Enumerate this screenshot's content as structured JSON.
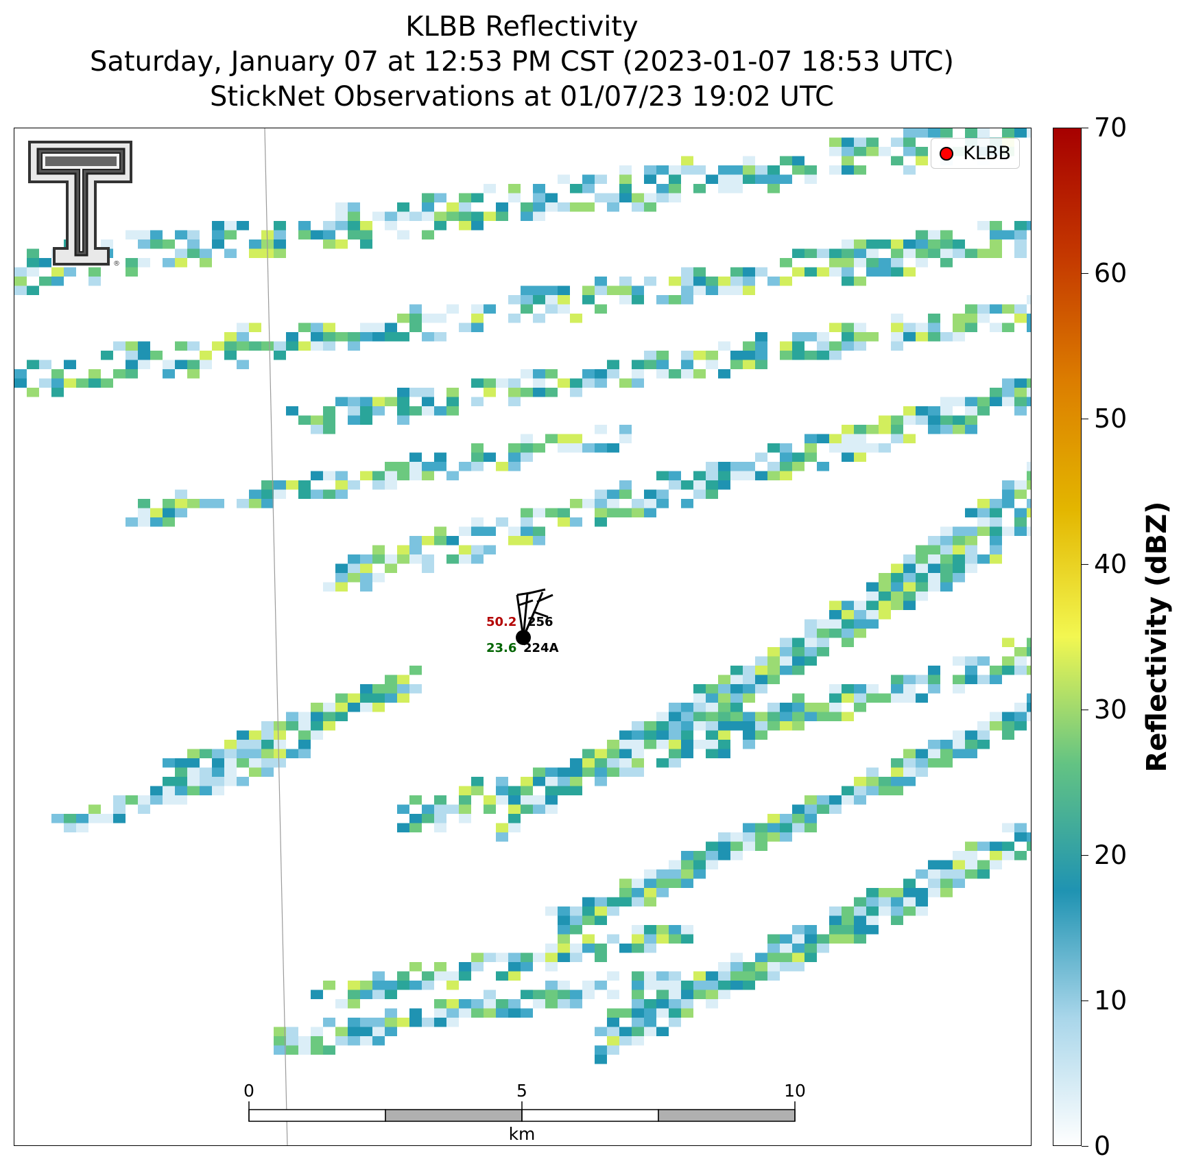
{
  "title": {
    "line1": "KLBB Reflectivity",
    "line2": "Saturday, January 07 at 12:53 PM CST (2023-01-07 18:53 UTC)",
    "line3": "StickNet Observations at 01/07/23 19:02 UTC"
  },
  "legend": {
    "label": "KLBB",
    "marker_color": "#ff0000"
  },
  "colorbar": {
    "title": "Reflectivity (dBZ)",
    "ticks": [
      "0",
      "10",
      "20",
      "30",
      "40",
      "50",
      "60",
      "70"
    ],
    "range": [
      0,
      70
    ],
    "stops": [
      "#ffffff",
      "#a9d6ea",
      "#1f93b2",
      "#63c383",
      "#f2f751",
      "#e3b600",
      "#dc7e00",
      "#c43800",
      "#a60000"
    ]
  },
  "stations": [
    {
      "temperature": "50.2",
      "dewpoint": "23.6",
      "id_top": "256",
      "id_bottom": "224A"
    }
  ],
  "scalebar": {
    "labels": [
      "0",
      "5",
      "10"
    ],
    "unit": "km"
  },
  "logo": {
    "name": "Texas Tech Double T",
    "registered_mark": "®"
  },
  "map": {
    "background": "#ffffff",
    "county_line_color": "#9a9a9a"
  }
}
